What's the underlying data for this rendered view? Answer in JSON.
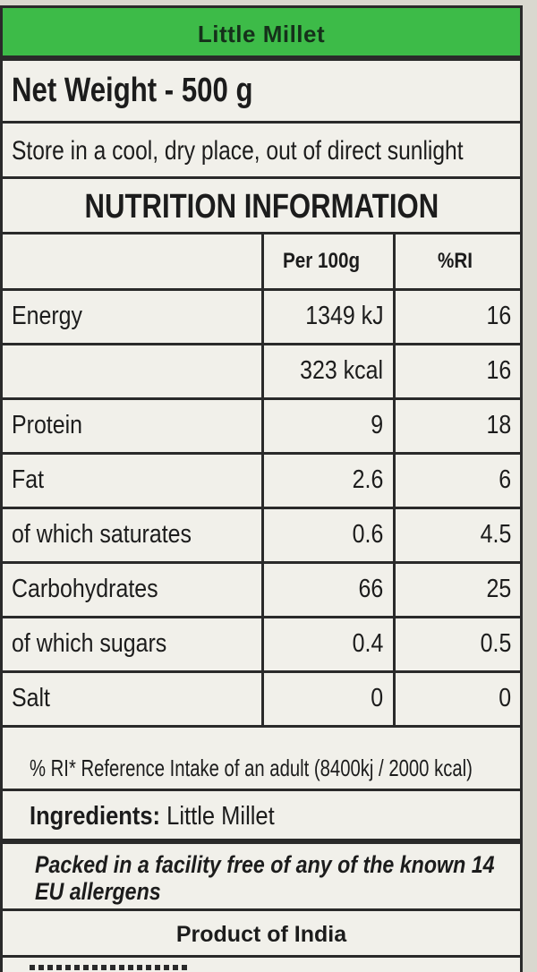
{
  "label": {
    "title": "Little Millet",
    "net_weight": "Net Weight - 500 g",
    "storage": "Store in a cool, dry place, out of direct sunlight",
    "nutrition_heading": "NUTRITION INFORMATION",
    "table": {
      "headers": [
        "",
        "Per 100g",
        "%RI"
      ],
      "rows": [
        {
          "name": "Energy",
          "per100g": "1349 kJ",
          "ri": "16"
        },
        {
          "name": "",
          "per100g": "323 kcal",
          "ri": "16"
        },
        {
          "name": "Protein",
          "per100g": "9",
          "ri": "18"
        },
        {
          "name": "Fat",
          "per100g": "2.6",
          "ri": "6"
        },
        {
          "name": "of which saturates",
          "per100g": "0.6",
          "ri": "4.5"
        },
        {
          "name": "Carbohydrates",
          "per100g": "66",
          "ri": "25"
        },
        {
          "name": "of which sugars",
          "per100g": "0.4",
          "ri": "0.5"
        },
        {
          "name": "Salt",
          "per100g": "0",
          "ri": "0"
        }
      ]
    },
    "footnote": "% RI* Reference Intake of an adult (8400kj / 2000 kcal)",
    "ingredients_label": "Ingredients:",
    "ingredients_value": "Little Millet",
    "allergen_note": "Packed in a facility free of any of the known 14 EU allergens",
    "origin": "Product of India"
  },
  "colors": {
    "title_bar": "#3dbb48",
    "label_bg": "#f1f0ea",
    "rule": "#2a2a2a"
  }
}
